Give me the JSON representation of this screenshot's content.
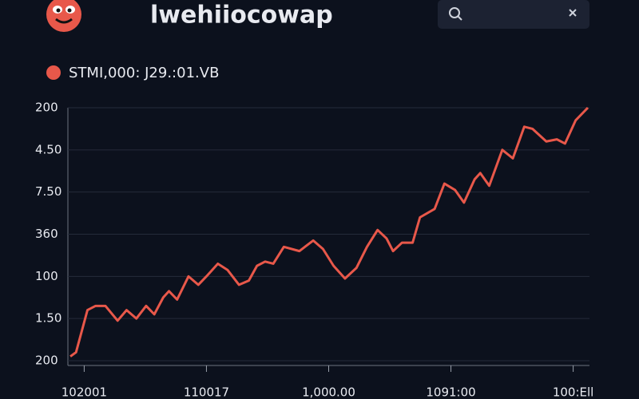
{
  "app": {
    "title": "lwehiiocowap"
  },
  "chart_data": {
    "type": "line",
    "x": [
      0.3,
      1,
      2.4,
      3.4,
      4.6,
      6.1,
      7.2,
      8.4,
      9.6,
      10.6,
      11.7,
      12.4,
      13.4,
      14.8,
      16,
      17,
      18.4,
      19.6,
      21,
      22.2,
      23.2,
      24.2,
      25.2,
      26.5,
      28.4,
      30.1,
      31.3,
      32.6,
      34,
      35.4,
      36.7,
      38,
      39.1,
      39.9,
      41,
      42.3,
      43.2,
      45,
      46.2,
      47.5,
      48.6,
      49.9,
      50.6,
      51.7,
      53.3,
      54.6,
      56,
      57,
      58.7,
      60,
      61,
      62.3,
      63.8
    ],
    "series": [
      {
        "name": "STMI,000: J29.:01.VB",
        "color": "#e8584a",
        "values": [
          0.1,
          0.2,
          1.2,
          1.3,
          1.3,
          0.95,
          1.2,
          1.0,
          1.3,
          1.1,
          1.5,
          1.65,
          1.45,
          2.0,
          1.8,
          2.0,
          2.3,
          2.15,
          1.8,
          1.9,
          2.25,
          2.35,
          2.3,
          2.7,
          2.6,
          2.85,
          2.65,
          2.25,
          1.95,
          2.2,
          2.7,
          3.1,
          2.9,
          2.6,
          2.8,
          2.8,
          3.4,
          3.6,
          4.2,
          4.05,
          3.75,
          4.3,
          4.45,
          4.15,
          5.0,
          4.8,
          5.55,
          5.5,
          5.2,
          5.25,
          5.15,
          5.7,
          6.0
        ]
      }
    ],
    "xlim": [
      0,
      64
    ],
    "xticks": [
      {
        "value": 2,
        "label": "102001"
      },
      {
        "value": 17,
        "label": "110017"
      },
      {
        "value": 32,
        "label": "1,000.00"
      },
      {
        "value": 47,
        "label": "1091:00"
      },
      {
        "value": 62,
        "label": "100:Ell"
      }
    ],
    "ylim": [
      0,
      6
    ],
    "yticks": [
      {
        "value": 0,
        "label": "200"
      },
      {
        "value": 1,
        "label": "1.50"
      },
      {
        "value": 2,
        "label": "100"
      },
      {
        "value": 3,
        "label": "360"
      },
      {
        "value": 4,
        "label": "7.50"
      },
      {
        "value": 5,
        "label": "4.50"
      },
      {
        "value": 6,
        "label": "200"
      }
    ],
    "grid": true
  }
}
